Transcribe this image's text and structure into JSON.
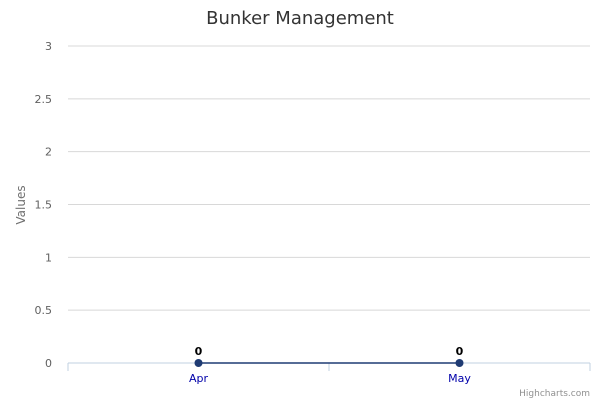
{
  "chart_data": {
    "type": "line",
    "title": "Bunker Management",
    "ylabel": "Values",
    "xlabel": "",
    "categories": [
      "Apr",
      "May"
    ],
    "series": [
      {
        "values": [
          0,
          0
        ],
        "color": "#1f3b73"
      }
    ],
    "ylim": [
      0,
      3
    ],
    "yticks": [
      "0",
      "0.5",
      "1",
      "1.5",
      "2",
      "2.5",
      "3"
    ],
    "data_labels": [
      "0",
      "0"
    ],
    "grid": true,
    "legend": "none"
  },
  "credits": "Highcharts.com",
  "colors": {
    "grid": "#d8d8d8",
    "axis": "#c0d0e0",
    "xtick_text": "#0000aa"
  }
}
